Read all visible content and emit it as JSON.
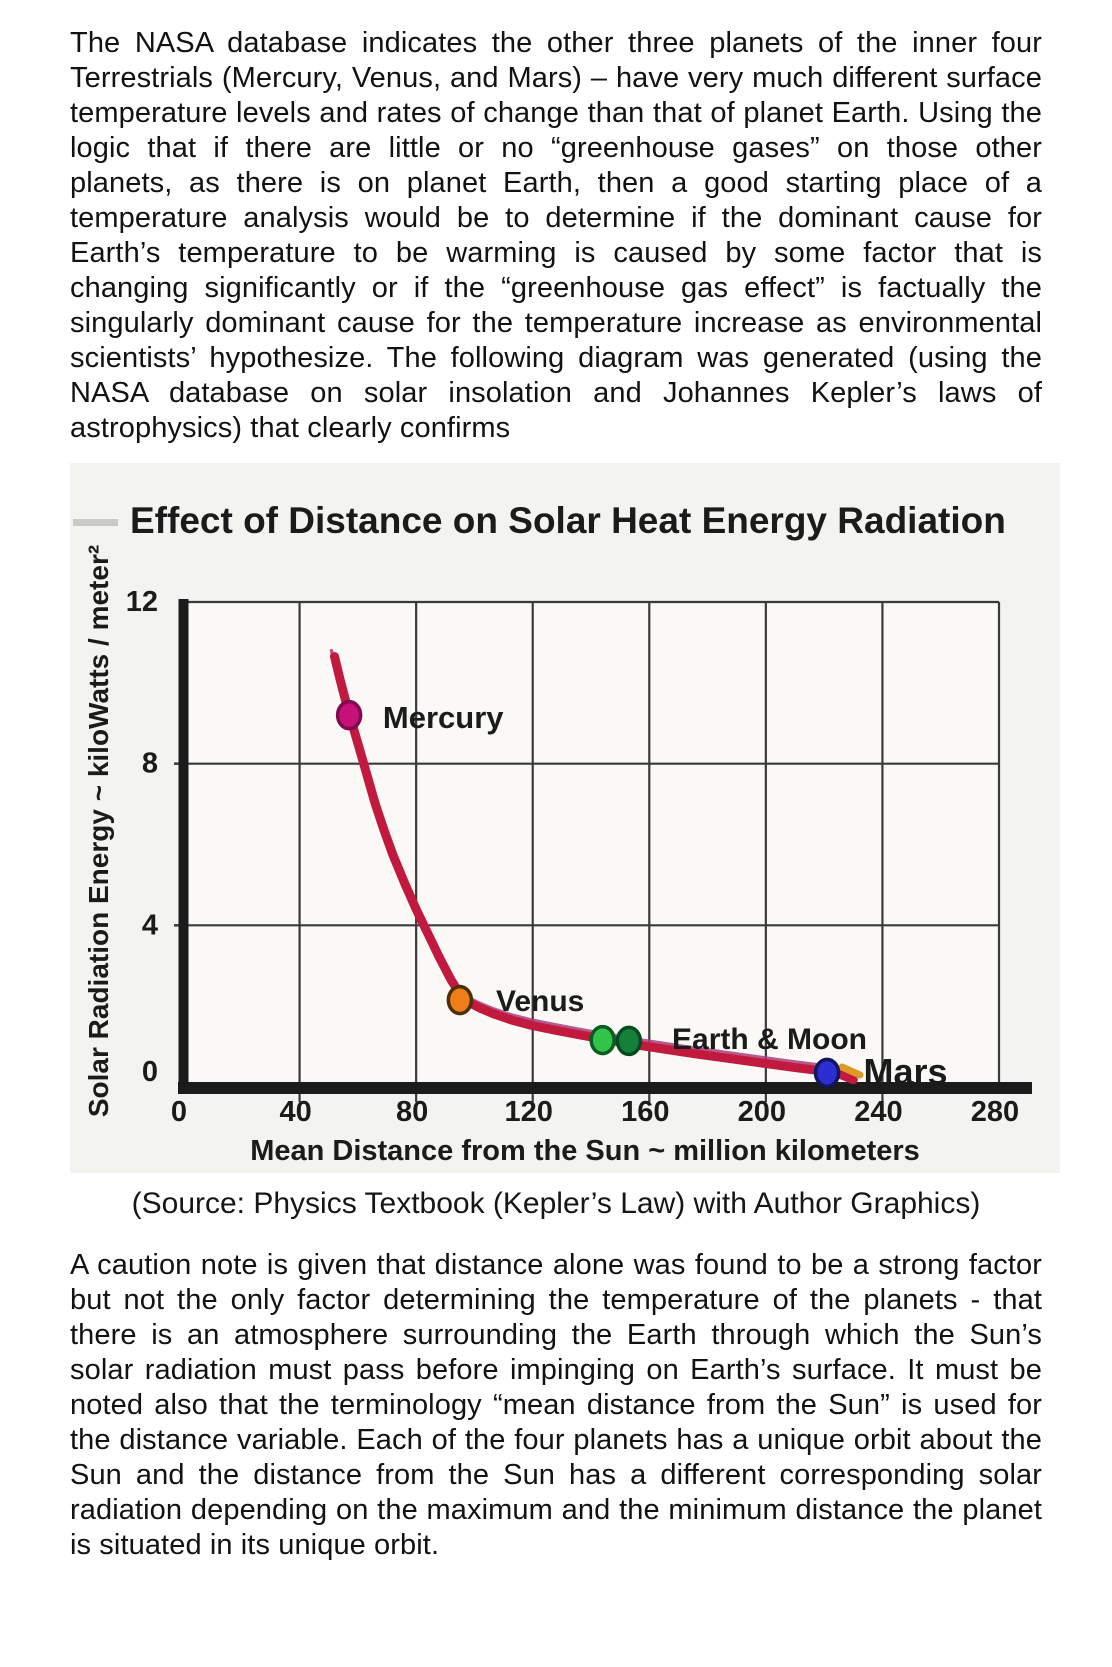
{
  "page": {
    "paragraph_top": "The NASA database indicates the other three planets of the inner four Terrestrials (Mercury, Venus, and Mars) – have very much different surface temperature levels and rates of change than that of planet Earth. Using the logic that if there are little or no “greenhouse gases” on those other planets, as there is on planet Earth, then a good starting place of a temperature analysis would be to determine if the dominant cause for Earth’s temperature to be warming is caused by some factor that is changing significantly or if the “greenhouse gas effect” is factually the singularly dominant cause for the temperature increase as environmental scientists’ hypothesize. The following diagram was generated (using the NASA database on solar insolation and Johannes Kepler’s laws of astrophysics) that clearly confirms",
    "source_caption": "(Source: Physics Textbook (Kepler’s Law) with Author Graphics)",
    "paragraph_bottom": "A caution note is given that distance alone was found to be a strong factor but not the only factor determining the temperature of the planets - that there is an atmosphere surrounding the Earth through which the Sun’s solar radiation must pass before impinging on Earth’s surface. It must be noted also that the terminology “mean distance from the Sun” is used for the distance variable. Each of the four planets has a unique orbit about the Sun and the distance from the Sun has a different corresponding solar radiation depending on the maximum and the minimum distance the planet is situated in its unique orbit."
  },
  "chart_data": {
    "type": "scatter",
    "title": "Effect of Distance on Solar Heat Energy Radiation",
    "xlabel": "Mean Distance from the Sun ~ million kilometers",
    "ylabel": "Solar Radiation Energy ~ kiloWatts / meter²",
    "xlim": [
      0,
      280
    ],
    "ylim": [
      0,
      12
    ],
    "xticks": [
      0,
      40,
      80,
      120,
      160,
      200,
      240,
      280
    ],
    "yticks": [
      0,
      4,
      8,
      12
    ],
    "grid": true,
    "legend": "none",
    "points": [
      {
        "name": "Mercury",
        "x": 57,
        "y": 9.2,
        "fill": "#c71178",
        "stroke": "#83094f"
      },
      {
        "name": "Venus",
        "x": 95,
        "y": 2.15,
        "fill": "#ef7d18",
        "stroke": "#4a3004"
      },
      {
        "name": "Earth",
        "x": 144,
        "y": 1.16,
        "fill": "#33c24a",
        "stroke": "#0b5c20"
      },
      {
        "name": "Moon",
        "x": 153,
        "y": 1.14,
        "fill": "#14803a",
        "stroke": "#084a20"
      },
      {
        "name": "Mars",
        "x": 221,
        "y": 0.35,
        "fill": "#2b2fd0",
        "stroke": "#13155e"
      }
    ],
    "point_labels": [
      {
        "text": "Mercury",
        "x": 68.6,
        "y": 8.88,
        "size": 31
      },
      {
        "text": "Venus",
        "x": 107.4,
        "y": 1.88,
        "size": 30
      },
      {
        "text": "Earth & Moon",
        "x": 167.8,
        "y": 0.94,
        "size": 30
      },
      {
        "text": "Mars",
        "x": 233.5,
        "y": 0.07,
        "size": 36
      }
    ],
    "curve": [
      [
        52,
        10.65
      ],
      [
        54,
        10.05
      ],
      [
        56,
        9.5
      ],
      [
        58,
        9.0
      ],
      [
        60,
        8.5
      ],
      [
        63,
        7.75
      ],
      [
        66,
        7.0
      ],
      [
        69,
        6.35
      ],
      [
        72,
        5.75
      ],
      [
        76,
        5.05
      ],
      [
        80,
        4.4
      ],
      [
        84,
        3.8
      ],
      [
        88,
        3.2
      ],
      [
        92,
        2.65
      ],
      [
        95,
        2.3
      ],
      [
        98,
        2.1
      ],
      [
        102,
        1.95
      ],
      [
        107,
        1.8
      ],
      [
        113,
        1.65
      ],
      [
        120,
        1.52
      ],
      [
        128,
        1.4
      ],
      [
        137,
        1.28
      ],
      [
        146,
        1.16
      ],
      [
        155,
        1.05
      ],
      [
        165,
        0.94
      ],
      [
        176,
        0.82
      ],
      [
        188,
        0.7
      ],
      [
        200,
        0.58
      ],
      [
        210,
        0.48
      ],
      [
        219,
        0.4
      ],
      [
        226,
        0.3
      ],
      [
        230,
        0.18
      ]
    ],
    "colors": {
      "curve": "#c21a3e",
      "curve_fringe": "#a8407e",
      "grid": "#3a3a3a",
      "axis": "#1b1b1b",
      "text": "#1b1b1b",
      "plot_bg": "#faf9f6",
      "figure_bg": "#f3f3ef",
      "end_dash": "#dd9a22",
      "artifact_dash": "#c9c9c5"
    }
  }
}
